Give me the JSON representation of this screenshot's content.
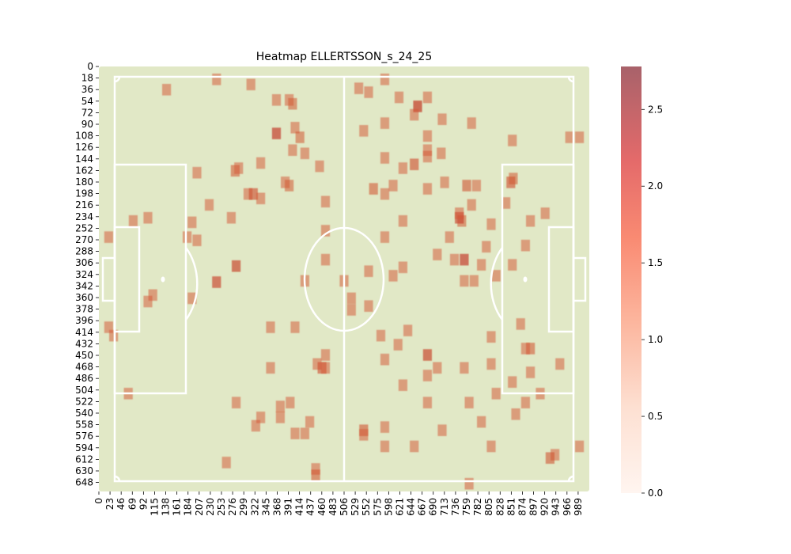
{
  "chart_data": {
    "type": "heatmap",
    "title": "Heatmap ELLERTSSON_s_24_25",
    "xlabel": "",
    "ylabel": "",
    "x_range": [
      0,
      1000
    ],
    "y_range": [
      0,
      660
    ],
    "x_tick_labels": [
      "0",
      "23",
      "46",
      "69",
      "92",
      "115",
      "138",
      "161",
      "184",
      "207",
      "230",
      "253",
      "276",
      "299",
      "322",
      "345",
      "368",
      "391",
      "414",
      "437",
      "460",
      "483",
      "506",
      "529",
      "552",
      "575",
      "598",
      "621",
      "644",
      "667",
      "690",
      "713",
      "736",
      "759",
      "782",
      "805",
      "828",
      "851",
      "874",
      "897",
      "920",
      "943",
      "966",
      "989"
    ],
    "y_tick_labels": [
      "0",
      "18",
      "36",
      "54",
      "72",
      "90",
      "108",
      "126",
      "144",
      "162",
      "180",
      "198",
      "216",
      "234",
      "252",
      "270",
      "288",
      "306",
      "324",
      "342",
      "360",
      "378",
      "396",
      "414",
      "432",
      "450",
      "468",
      "486",
      "504",
      "522",
      "540",
      "558",
      "576",
      "594",
      "612",
      "630",
      "648"
    ],
    "colorbar": {
      "min": 0,
      "max": 2.78,
      "ticks": [
        "0.0",
        "0.5",
        "1.0",
        "1.5",
        "2.0",
        "2.5"
      ]
    },
    "colors": {
      "pitch": "#e1e8c6",
      "lines": "#ffffff",
      "cmap_low": "#fff5f0",
      "cmap_mid": "#f7876a",
      "cmap_high": "#a8626a"
    },
    "cell_size": [
      18,
      18
    ],
    "points": [
      {
        "x": 138,
        "y": 36,
        "v": 0.8
      },
      {
        "x": 240,
        "y": 20,
        "v": 0.8
      },
      {
        "x": 310,
        "y": 28,
        "v": 0.8
      },
      {
        "x": 388,
        "y": 52,
        "v": 0.8
      },
      {
        "x": 362,
        "y": 52,
        "v": 0.8
      },
      {
        "x": 395,
        "y": 58,
        "v": 0.9
      },
      {
        "x": 530,
        "y": 34,
        "v": 0.8
      },
      {
        "x": 550,
        "y": 40,
        "v": 0.8
      },
      {
        "x": 583,
        "y": 20,
        "v": 0.8
      },
      {
        "x": 612,
        "y": 48,
        "v": 0.8
      },
      {
        "x": 650,
        "y": 62,
        "v": 1.9
      },
      {
        "x": 670,
        "y": 48,
        "v": 0.8
      },
      {
        "x": 643,
        "y": 75,
        "v": 0.8
      },
      {
        "x": 400,
        "y": 95,
        "v": 0.8
      },
      {
        "x": 362,
        "y": 104,
        "v": 1.8
      },
      {
        "x": 410,
        "y": 110,
        "v": 0.9
      },
      {
        "x": 395,
        "y": 130,
        "v": 0.8
      },
      {
        "x": 420,
        "y": 135,
        "v": 0.8
      },
      {
        "x": 330,
        "y": 150,
        "v": 0.8
      },
      {
        "x": 450,
        "y": 155,
        "v": 0.8
      },
      {
        "x": 540,
        "y": 100,
        "v": 0.8
      },
      {
        "x": 583,
        "y": 88,
        "v": 0.8
      },
      {
        "x": 700,
        "y": 82,
        "v": 0.8
      },
      {
        "x": 760,
        "y": 88,
        "v": 0.8
      },
      {
        "x": 670,
        "y": 108,
        "v": 0.8
      },
      {
        "x": 843,
        "y": 115,
        "v": 0.8
      },
      {
        "x": 960,
        "y": 110,
        "v": 0.8
      },
      {
        "x": 980,
        "y": 110,
        "v": 0.8
      },
      {
        "x": 583,
        "y": 142,
        "v": 0.8
      },
      {
        "x": 620,
        "y": 158,
        "v": 0.8
      },
      {
        "x": 643,
        "y": 152,
        "v": 1.2
      },
      {
        "x": 670,
        "y": 140,
        "v": 0.8
      },
      {
        "x": 670,
        "y": 130,
        "v": 0.8
      },
      {
        "x": 698,
        "y": 135,
        "v": 0.8
      },
      {
        "x": 200,
        "y": 165,
        "v": 0.8
      },
      {
        "x": 278,
        "y": 162,
        "v": 1.0
      },
      {
        "x": 285,
        "y": 158,
        "v": 0.8
      },
      {
        "x": 380,
        "y": 180,
        "v": 0.8
      },
      {
        "x": 388,
        "y": 185,
        "v": 0.9
      },
      {
        "x": 304,
        "y": 198,
        "v": 0.8
      },
      {
        "x": 315,
        "y": 198,
        "v": 1.3
      },
      {
        "x": 330,
        "y": 205,
        "v": 0.8
      },
      {
        "x": 225,
        "y": 215,
        "v": 0.8
      },
      {
        "x": 462,
        "y": 210,
        "v": 0.8
      },
      {
        "x": 560,
        "y": 190,
        "v": 1.0
      },
      {
        "x": 583,
        "y": 198,
        "v": 0.8
      },
      {
        "x": 600,
        "y": 185,
        "v": 0.8
      },
      {
        "x": 670,
        "y": 190,
        "v": 0.8
      },
      {
        "x": 705,
        "y": 180,
        "v": 0.8
      },
      {
        "x": 750,
        "y": 185,
        "v": 1.1
      },
      {
        "x": 770,
        "y": 185,
        "v": 0.8
      },
      {
        "x": 840,
        "y": 180,
        "v": 1.2
      },
      {
        "x": 845,
        "y": 174,
        "v": 0.9
      },
      {
        "x": 830,
        "y": 212,
        "v": 0.8
      },
      {
        "x": 760,
        "y": 215,
        "v": 0.8
      },
      {
        "x": 740,
        "y": 240,
        "v": 0.9
      },
      {
        "x": 735,
        "y": 235,
        "v": 1.5
      },
      {
        "x": 735,
        "y": 228,
        "v": 0.8
      },
      {
        "x": 70,
        "y": 240,
        "v": 0.8
      },
      {
        "x": 100,
        "y": 235,
        "v": 0.8
      },
      {
        "x": 190,
        "y": 242,
        "v": 0.8
      },
      {
        "x": 270,
        "y": 235,
        "v": 0.8
      },
      {
        "x": 462,
        "y": 255,
        "v": 0.8
      },
      {
        "x": 620,
        "y": 240,
        "v": 0.8
      },
      {
        "x": 800,
        "y": 245,
        "v": 0.8
      },
      {
        "x": 880,
        "y": 240,
        "v": 0.8
      },
      {
        "x": 910,
        "y": 228,
        "v": 0.8
      },
      {
        "x": 20,
        "y": 265,
        "v": 0.8
      },
      {
        "x": 180,
        "y": 265,
        "v": 0.8
      },
      {
        "x": 200,
        "y": 270,
        "v": 0.8
      },
      {
        "x": 583,
        "y": 265,
        "v": 0.8
      },
      {
        "x": 715,
        "y": 265,
        "v": 0.8
      },
      {
        "x": 790,
        "y": 280,
        "v": 0.8
      },
      {
        "x": 870,
        "y": 278,
        "v": 0.8
      },
      {
        "x": 280,
        "y": 310,
        "v": 1.6
      },
      {
        "x": 462,
        "y": 300,
        "v": 0.8
      },
      {
        "x": 690,
        "y": 292,
        "v": 0.8
      },
      {
        "x": 725,
        "y": 300,
        "v": 0.8
      },
      {
        "x": 745,
        "y": 300,
        "v": 1.8
      },
      {
        "x": 780,
        "y": 308,
        "v": 0.8
      },
      {
        "x": 843,
        "y": 308,
        "v": 0.8
      },
      {
        "x": 240,
        "y": 335,
        "v": 1.5
      },
      {
        "x": 420,
        "y": 333,
        "v": 0.8
      },
      {
        "x": 500,
        "y": 333,
        "v": 0.8
      },
      {
        "x": 550,
        "y": 318,
        "v": 0.8
      },
      {
        "x": 600,
        "y": 325,
        "v": 0.8
      },
      {
        "x": 620,
        "y": 312,
        "v": 0.8
      },
      {
        "x": 745,
        "y": 333,
        "v": 0.8
      },
      {
        "x": 765,
        "y": 333,
        "v": 0.8
      },
      {
        "x": 810,
        "y": 325,
        "v": 0.8
      },
      {
        "x": 190,
        "y": 360,
        "v": 0.8
      },
      {
        "x": 110,
        "y": 355,
        "v": 0.8
      },
      {
        "x": 100,
        "y": 365,
        "v": 0.8
      },
      {
        "x": 515,
        "y": 360,
        "v": 0.8
      },
      {
        "x": 515,
        "y": 378,
        "v": 0.8
      },
      {
        "x": 550,
        "y": 372,
        "v": 0.8
      },
      {
        "x": 20,
        "y": 405,
        "v": 0.8
      },
      {
        "x": 30,
        "y": 418,
        "v": 0.8
      },
      {
        "x": 350,
        "y": 405,
        "v": 0.8
      },
      {
        "x": 400,
        "y": 405,
        "v": 0.8
      },
      {
        "x": 575,
        "y": 418,
        "v": 0.8
      },
      {
        "x": 630,
        "y": 410,
        "v": 0.8
      },
      {
        "x": 860,
        "y": 400,
        "v": 0.8
      },
      {
        "x": 800,
        "y": 420,
        "v": 0.8
      },
      {
        "x": 610,
        "y": 432,
        "v": 0.8
      },
      {
        "x": 462,
        "y": 448,
        "v": 0.8
      },
      {
        "x": 670,
        "y": 448,
        "v": 1.6
      },
      {
        "x": 880,
        "y": 438,
        "v": 1.0
      },
      {
        "x": 870,
        "y": 438,
        "v": 0.8
      },
      {
        "x": 350,
        "y": 468,
        "v": 0.8
      },
      {
        "x": 445,
        "y": 462,
        "v": 0.8
      },
      {
        "x": 455,
        "y": 468,
        "v": 1.2
      },
      {
        "x": 462,
        "y": 468,
        "v": 0.8
      },
      {
        "x": 583,
        "y": 455,
        "v": 0.8
      },
      {
        "x": 690,
        "y": 468,
        "v": 0.8
      },
      {
        "x": 745,
        "y": 468,
        "v": 0.8
      },
      {
        "x": 800,
        "y": 462,
        "v": 0.8
      },
      {
        "x": 880,
        "y": 475,
        "v": 0.8
      },
      {
        "x": 940,
        "y": 462,
        "v": 0.8
      },
      {
        "x": 670,
        "y": 480,
        "v": 0.8
      },
      {
        "x": 620,
        "y": 495,
        "v": 0.8
      },
      {
        "x": 843,
        "y": 490,
        "v": 0.8
      },
      {
        "x": 60,
        "y": 508,
        "v": 0.8
      },
      {
        "x": 810,
        "y": 508,
        "v": 0.8
      },
      {
        "x": 900,
        "y": 508,
        "v": 0.8
      },
      {
        "x": 280,
        "y": 522,
        "v": 0.8
      },
      {
        "x": 370,
        "y": 528,
        "v": 0.8
      },
      {
        "x": 390,
        "y": 522,
        "v": 0.8
      },
      {
        "x": 670,
        "y": 522,
        "v": 0.8
      },
      {
        "x": 755,
        "y": 522,
        "v": 0.8
      },
      {
        "x": 870,
        "y": 522,
        "v": 0.8
      },
      {
        "x": 850,
        "y": 540,
        "v": 0.8
      },
      {
        "x": 330,
        "y": 545,
        "v": 0.8
      },
      {
        "x": 370,
        "y": 545,
        "v": 0.8
      },
      {
        "x": 320,
        "y": 558,
        "v": 0.8
      },
      {
        "x": 430,
        "y": 552,
        "v": 0.8
      },
      {
        "x": 400,
        "y": 570,
        "v": 0.8
      },
      {
        "x": 420,
        "y": 570,
        "v": 0.8
      },
      {
        "x": 540,
        "y": 565,
        "v": 1.1
      },
      {
        "x": 540,
        "y": 572,
        "v": 0.8
      },
      {
        "x": 583,
        "y": 560,
        "v": 0.8
      },
      {
        "x": 700,
        "y": 565,
        "v": 0.8
      },
      {
        "x": 780,
        "y": 552,
        "v": 0.8
      },
      {
        "x": 583,
        "y": 590,
        "v": 0.8
      },
      {
        "x": 643,
        "y": 590,
        "v": 0.8
      },
      {
        "x": 800,
        "y": 590,
        "v": 0.8
      },
      {
        "x": 980,
        "y": 590,
        "v": 0.8
      },
      {
        "x": 930,
        "y": 603,
        "v": 0.8
      },
      {
        "x": 920,
        "y": 608,
        "v": 1.1
      },
      {
        "x": 260,
        "y": 615,
        "v": 0.8
      },
      {
        "x": 442,
        "y": 625,
        "v": 0.8
      },
      {
        "x": 442,
        "y": 635,
        "v": 1.0
      },
      {
        "x": 755,
        "y": 648,
        "v": 0.8
      }
    ]
  }
}
